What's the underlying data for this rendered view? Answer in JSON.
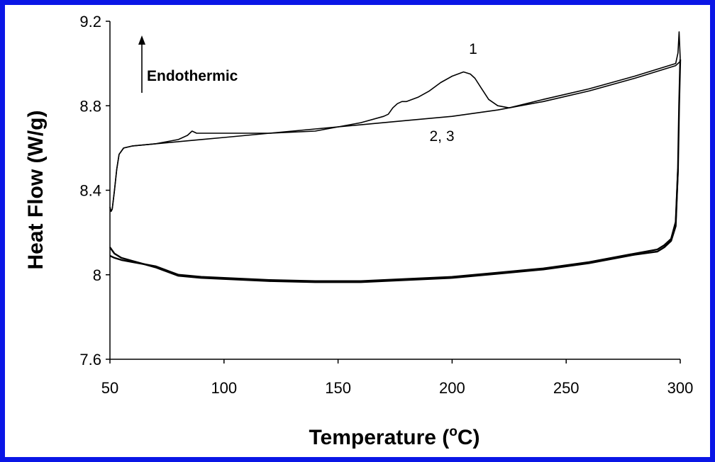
{
  "chart_data": {
    "type": "line",
    "title": "",
    "xlabel": "Temperature (",
    "xlabel_super": "o",
    "xlabel_suffix": "C)",
    "ylabel": "Heat Flow (W/g)",
    "xlim": [
      50,
      300
    ],
    "ylim": [
      7.6,
      9.2
    ],
    "xticks": [
      "50",
      "100",
      "150",
      "200",
      "250",
      "300"
    ],
    "yticks": [
      "7.6",
      "8",
      "8.4",
      "8.8",
      "9.2"
    ],
    "grid": false,
    "legend": "none",
    "annotations": {
      "direction": "Endothermic",
      "curve1": "1",
      "curve23": "2, 3"
    },
    "colors": {
      "frame": "#0a16e6",
      "line": "#000000"
    },
    "series": [
      {
        "label_ref": "1",
        "x": [
          50,
          50.5,
          51,
          52,
          53,
          54,
          56,
          60,
          70,
          80,
          84,
          86,
          88,
          100,
          120,
          140,
          160,
          170,
          172,
          174,
          176,
          178,
          180,
          185,
          190,
          195,
          200,
          205,
          208,
          210,
          213,
          216,
          220,
          225,
          240,
          260,
          280,
          298,
          299,
          299.5,
          300
        ],
        "y": [
          8.32,
          8.3,
          8.31,
          8.4,
          8.5,
          8.57,
          8.6,
          8.61,
          8.62,
          8.64,
          8.66,
          8.68,
          8.67,
          8.67,
          8.67,
          8.68,
          8.72,
          8.75,
          8.76,
          8.79,
          8.81,
          8.82,
          8.82,
          8.84,
          8.87,
          8.91,
          8.94,
          8.96,
          8.95,
          8.93,
          8.88,
          8.83,
          8.8,
          8.79,
          8.83,
          8.88,
          8.94,
          9.0,
          9.05,
          9.15,
          9.02
        ]
      },
      {
        "label_ref": "2, 3",
        "x": [
          50,
          50.5,
          51,
          52,
          53,
          54,
          56,
          60,
          70,
          80,
          90,
          100,
          120,
          140,
          160,
          180,
          200,
          220,
          240,
          260,
          280,
          298,
          300
        ],
        "y": [
          8.32,
          8.3,
          8.31,
          8.4,
          8.5,
          8.57,
          8.6,
          8.61,
          8.62,
          8.63,
          8.64,
          8.65,
          8.67,
          8.69,
          8.71,
          8.73,
          8.75,
          8.78,
          8.82,
          8.87,
          8.93,
          8.99,
          9.01
        ]
      },
      {
        "label_ref": "cooling",
        "x": [
          300,
          299.5,
          299,
          298,
          296,
          293,
          290,
          280,
          260,
          240,
          220,
          200,
          180,
          160,
          140,
          120,
          100,
          90,
          85,
          80,
          75,
          70,
          65,
          60,
          55,
          52,
          50
        ],
        "y": [
          9.02,
          8.8,
          8.5,
          8.25,
          8.17,
          8.14,
          8.12,
          8.1,
          8.06,
          8.03,
          8.01,
          7.99,
          7.98,
          7.97,
          7.97,
          7.975,
          7.985,
          7.99,
          7.995,
          8.0,
          8.02,
          8.04,
          8.05,
          8.06,
          8.07,
          8.08,
          8.09
        ]
      },
      {
        "label_ref": "cooling-2",
        "x": [
          299,
          298,
          296,
          293,
          290,
          280,
          260,
          240,
          220,
          200,
          180,
          160,
          140,
          120,
          100,
          90,
          80,
          75,
          70,
          65,
          60,
          55,
          52,
          50
        ],
        "y": [
          8.5,
          8.23,
          8.16,
          8.13,
          8.11,
          8.095,
          8.055,
          8.025,
          8.005,
          7.985,
          7.975,
          7.965,
          7.965,
          7.97,
          7.98,
          7.985,
          7.995,
          8.015,
          8.035,
          8.05,
          8.065,
          8.08,
          8.1,
          8.13
        ]
      }
    ]
  }
}
